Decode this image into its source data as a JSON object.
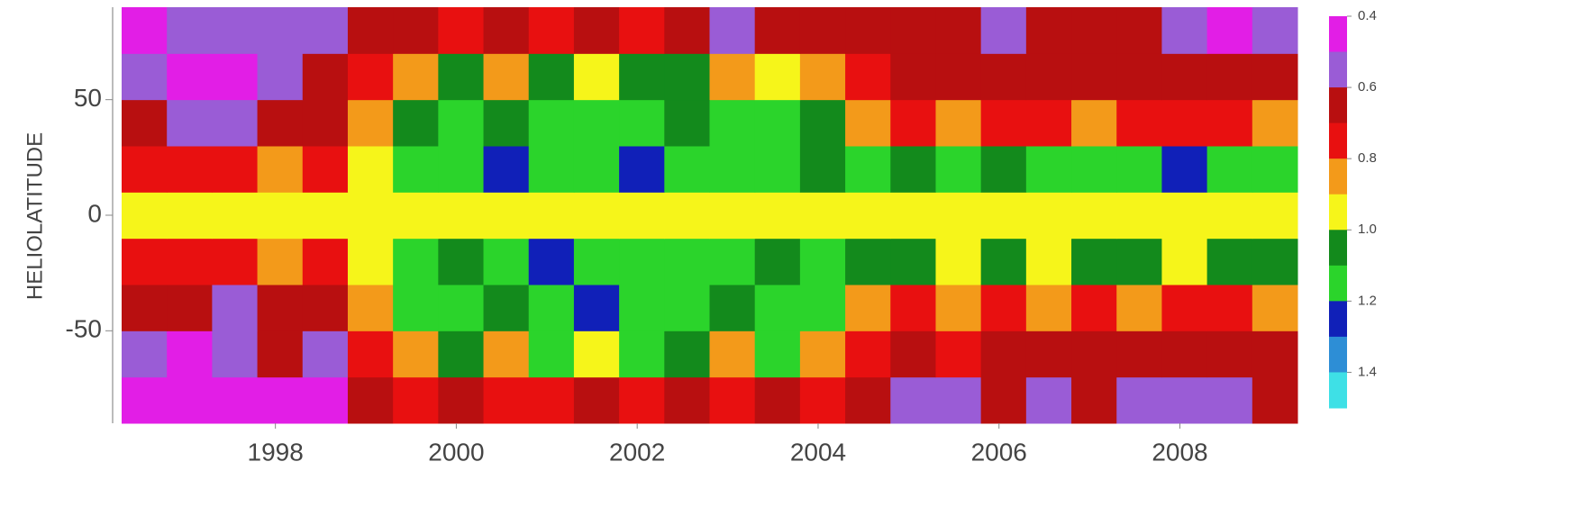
{
  "chart_data": {
    "type": "heatmap",
    "y_label": "HELIOLATITUDE",
    "x": [
      1996.55,
      1997.05,
      1997.55,
      1998.05,
      1998.55,
      1999.05,
      1999.55,
      2000.05,
      2000.55,
      2001.05,
      2001.55,
      2002.05,
      2002.55,
      2003.05,
      2003.55,
      2004.05,
      2004.55,
      2005.05,
      2005.55,
      2006.05,
      2006.55,
      2007.05,
      2007.55,
      2008.05,
      2008.55,
      2009.05
    ],
    "y": [
      -80,
      -60,
      -40,
      -20,
      0,
      20,
      40,
      60,
      80
    ],
    "z": [
      [
        0.45,
        0.45,
        0.45,
        0.45,
        0.45,
        0.65,
        0.7,
        0.65,
        0.7,
        0.7,
        0.65,
        0.7,
        0.65,
        0.7,
        0.65,
        0.7,
        0.65,
        0.55,
        0.55,
        0.65,
        0.55,
        0.65,
        0.55,
        0.55,
        0.55,
        0.65
      ],
      [
        0.55,
        0.45,
        0.55,
        0.65,
        0.55,
        0.75,
        0.85,
        1.05,
        0.85,
        1.1,
        0.95,
        1.15,
        1.05,
        0.85,
        1.1,
        0.85,
        0.75,
        0.65,
        0.75,
        0.65,
        0.65,
        0.65,
        0.65,
        0.65,
        0.65,
        0.65
      ],
      [
        0.65,
        0.65,
        0.55,
        0.65,
        0.65,
        0.85,
        1.1,
        1.15,
        1.05,
        1.15,
        1.25,
        1.1,
        1.15,
        1.05,
        1.15,
        1.1,
        0.85,
        0.75,
        0.85,
        0.75,
        0.85,
        0.75,
        0.85,
        0.75,
        0.75,
        0.85
      ],
      [
        0.75,
        0.75,
        0.75,
        0.85,
        0.75,
        0.95,
        1.15,
        1.05,
        1.15,
        1.25,
        1.15,
        1.1,
        1.15,
        1.1,
        1.05,
        1.15,
        1.05,
        1.05,
        0.95,
        1.05,
        0.95,
        1.05,
        1.05,
        0.95,
        1.05,
        1.05
      ],
      [
        0.95,
        0.95,
        0.95,
        0.95,
        0.95,
        0.95,
        0.95,
        0.95,
        0.95,
        0.95,
        0.95,
        0.95,
        0.95,
        0.95,
        0.95,
        0.95,
        0.95,
        0.95,
        0.95,
        0.95,
        0.95,
        0.95,
        0.95,
        0.95,
        0.95,
        0.95
      ],
      [
        0.75,
        0.75,
        0.75,
        0.85,
        0.75,
        0.95,
        1.15,
        1.1,
        1.25,
        1.15,
        1.15,
        1.25,
        1.1,
        1.15,
        1.15,
        1.05,
        1.15,
        1.05,
        1.15,
        1.05,
        1.1,
        1.15,
        1.15,
        1.25,
        1.15,
        1.15
      ],
      [
        0.65,
        0.55,
        0.55,
        0.65,
        0.65,
        0.85,
        1.05,
        1.15,
        1.05,
        1.15,
        1.1,
        1.15,
        1.05,
        1.15,
        1.15,
        1.05,
        0.85,
        0.75,
        0.85,
        0.75,
        0.75,
        0.85,
        0.75,
        0.75,
        0.75,
        0.85
      ],
      [
        0.55,
        0.45,
        0.45,
        0.55,
        0.65,
        0.75,
        0.85,
        1.05,
        0.85,
        1.05,
        0.95,
        1.05,
        1.05,
        0.85,
        0.95,
        0.85,
        0.75,
        0.65,
        0.65,
        0.65,
        0.65,
        0.65,
        0.65,
        0.65,
        0.65,
        0.65
      ],
      [
        0.45,
        0.55,
        0.55,
        0.55,
        0.55,
        0.65,
        0.65,
        0.7,
        0.65,
        0.7,
        0.65,
        0.7,
        0.65,
        0.55,
        0.65,
        0.65,
        0.65,
        0.65,
        0.65,
        0.55,
        0.65,
        0.65,
        0.65,
        0.55,
        0.45,
        0.55
      ]
    ],
    "xlim": [
      1996.3,
      2009.3
    ],
    "xticks": [
      1998,
      2000,
      2002,
      2004,
      2006,
      2008
    ],
    "ylim": [
      -90,
      90
    ],
    "yticks": [
      -50,
      0,
      50
    ],
    "zlim": [
      0.4,
      1.5
    ],
    "zticks": [
      0.4,
      0.6,
      0.8,
      {
        "value": 1,
        "label": "1.0"
      },
      1.2,
      1.4
    ],
    "colors": [
      "#e21ee6",
      "#9a5cd6",
      "#b80f10",
      "#e81010",
      "#f39a1a",
      "#f6f51a",
      "#138a1c",
      "#2bd42b",
      "#1020b8",
      "#2d8ed6",
      "#3ee0e6"
    ]
  }
}
